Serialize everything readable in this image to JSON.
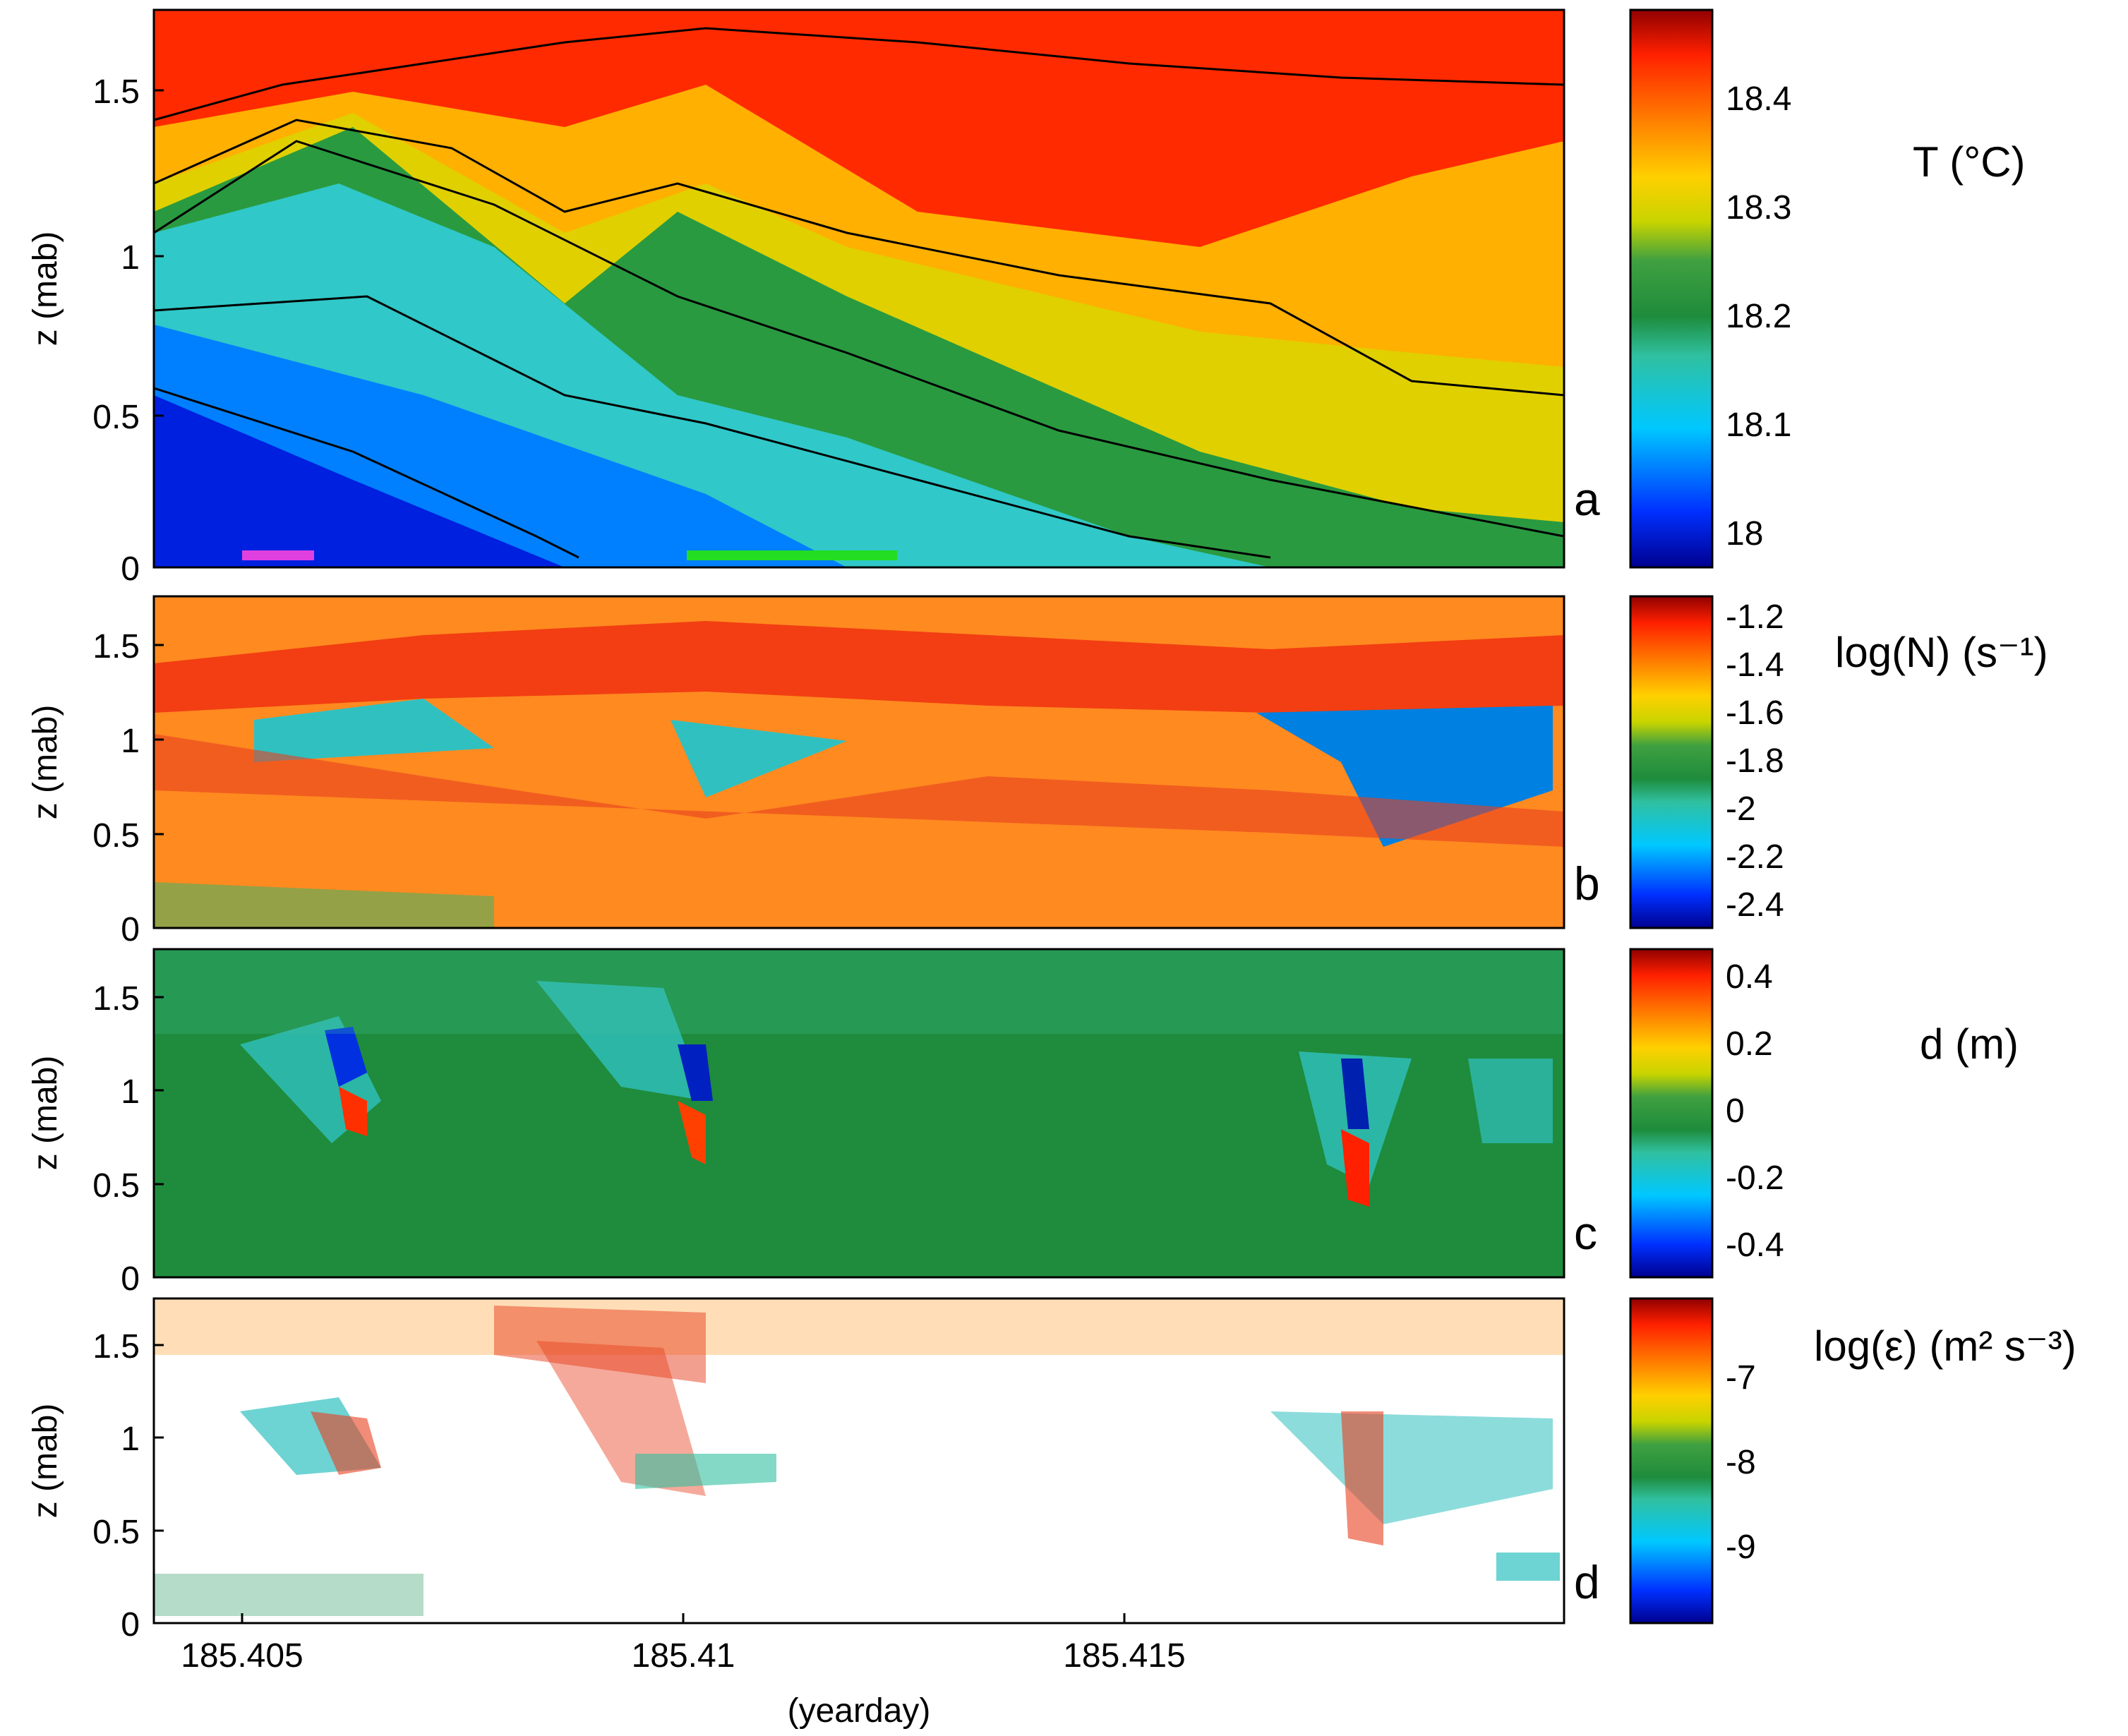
{
  "figure": {
    "xlabel": "(yearday)",
    "x_ticks": [
      "185.405",
      "185.41",
      "185.415"
    ],
    "y_ticks": [
      "0",
      "0.5",
      "1",
      "1.5"
    ]
  },
  "chart_data": [
    {
      "type": "heatmap",
      "panel_label": "a",
      "ylabel": "z (mab)",
      "xlabel": "",
      "xlim": [
        185.404,
        185.42
      ],
      "ylim": [
        0,
        1.75
      ],
      "x_ticks": [
        185.405,
        185.41,
        185.415
      ],
      "y_ticks": [
        0,
        0.5,
        1,
        1.5
      ],
      "colorbar": {
        "label": "T (°C)",
        "range": [
          17.97,
          18.48
        ],
        "ticks": [
          "18",
          "18.1",
          "18.2",
          "18.3",
          "18.4"
        ],
        "tick_values": [
          18.0,
          18.1,
          18.2,
          18.3,
          18.4
        ]
      },
      "isotherm_contours": true,
      "description_values": {
        "bottom_left_T": 18.0,
        "top_right_T": 18.47
      },
      "highlight_bars": [
        {
          "color": "#e040e0",
          "x_start": 185.405,
          "x_end": 185.4058
        },
        {
          "color": "#22dd22",
          "x_start": 185.41,
          "x_end": 185.4124
        }
      ]
    },
    {
      "type": "heatmap",
      "panel_label": "b",
      "ylabel": "z (mab)",
      "xlim": [
        185.404,
        185.42
      ],
      "ylim": [
        0,
        1.75
      ],
      "colorbar": {
        "label": "log(N) (s⁻¹)",
        "range": [
          -2.5,
          -1.1
        ],
        "ticks": [
          "-1.2",
          "-1.4",
          "-1.6",
          "-1.8",
          "-2",
          "-2.2",
          "-2.4"
        ],
        "tick_values": [
          -1.2,
          -1.4,
          -1.6,
          -1.8,
          -2.0,
          -2.2,
          -2.4
        ]
      }
    },
    {
      "type": "heatmap",
      "panel_label": "c",
      "ylabel": "z (mab)",
      "xlim": [
        185.404,
        185.42
      ],
      "ylim": [
        0,
        1.75
      ],
      "colorbar": {
        "label": "d (m)",
        "range": [
          -0.5,
          0.5
        ],
        "ticks": [
          "0.4",
          "0.2",
          "0",
          "-0.2",
          "-0.4"
        ],
        "tick_values": [
          0.4,
          0.2,
          0,
          -0.2,
          -0.4
        ]
      }
    },
    {
      "type": "heatmap",
      "panel_label": "d",
      "ylabel": "z (mab)",
      "xlabel": "(yearday)",
      "xlim": [
        185.404,
        185.42
      ],
      "ylim": [
        0,
        1.75
      ],
      "colorbar": {
        "label": "log(ε) (m² s⁻³)",
        "range": [
          -9.9,
          -6.2
        ],
        "ticks": [
          "-7",
          "-8",
          "-9"
        ],
        "tick_values": [
          -7,
          -8,
          -9
        ]
      }
    }
  ],
  "colormap": [
    "#00008f",
    "#0040ff",
    "#00c0ff",
    "#40c0a0",
    "#1e8c3c",
    "#3a9c3c",
    "#c8d400",
    "#ffd000",
    "#ff8000",
    "#ff2000",
    "#a00000"
  ]
}
